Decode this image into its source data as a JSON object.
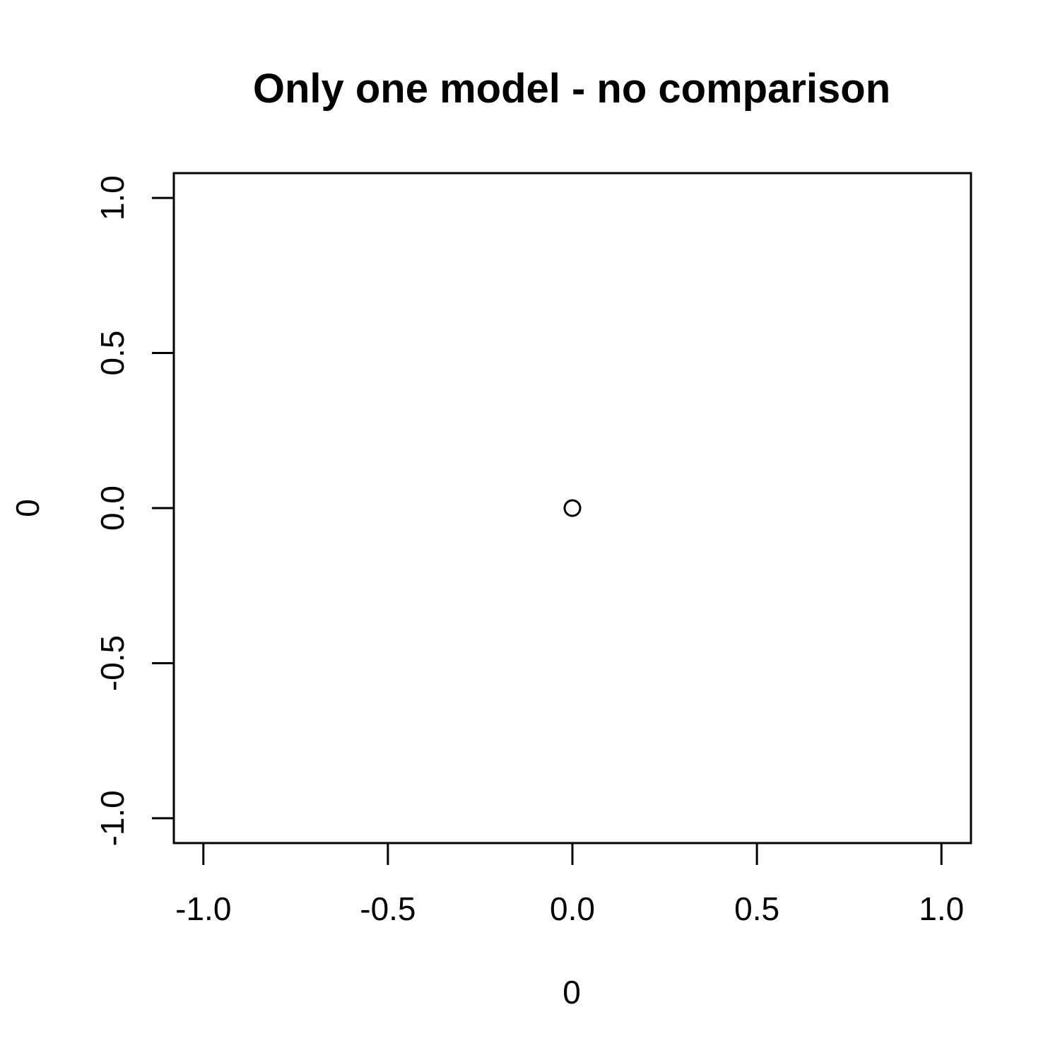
{
  "chart_data": {
    "type": "scatter",
    "title": "Only one model - no comparison",
    "xlabel": "0",
    "ylabel": "0",
    "xlim": [
      -1.08,
      1.08
    ],
    "ylim": [
      -1.08,
      1.08
    ],
    "x_ticks": [
      {
        "value": -1.0,
        "label": "-1.0"
      },
      {
        "value": -0.5,
        "label": "-0.5"
      },
      {
        "value": 0.0,
        "label": "0.0"
      },
      {
        "value": 0.5,
        "label": "0.5"
      },
      {
        "value": 1.0,
        "label": "1.0"
      }
    ],
    "y_ticks": [
      {
        "value": -1.0,
        "label": "-1.0"
      },
      {
        "value": -0.5,
        "label": "-0.5"
      },
      {
        "value": 0.0,
        "label": "0.0"
      },
      {
        "value": 0.5,
        "label": "0.5"
      },
      {
        "value": 1.0,
        "label": "1.0"
      }
    ],
    "points": [
      {
        "x": 0,
        "y": 0
      }
    ],
    "marker": "open-circle",
    "grid": false,
    "legend": "none",
    "color": "#000000"
  }
}
